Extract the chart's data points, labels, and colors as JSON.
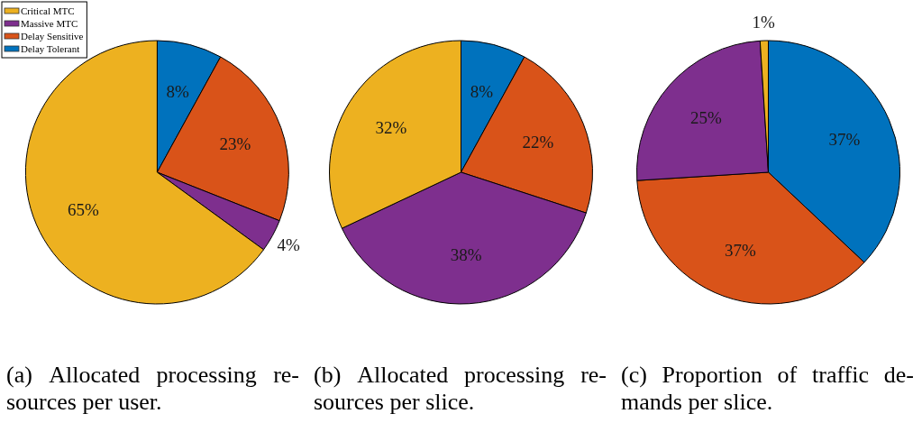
{
  "chart_data": [
    {
      "type": "pie",
      "title": "(a) Allocated processing re-\nsources per user.",
      "categories": [
        "Delay Tolerant",
        "Delay Sensitive",
        "Massive MTC",
        "Critical MTC"
      ],
      "values": [
        8,
        23,
        4,
        65
      ],
      "colors": [
        "#0072bd",
        "#d95319",
        "#7e2f8e",
        "#edb120"
      ],
      "value_labels": [
        "8%",
        "23%",
        "4%",
        "65%"
      ],
      "legend": "top left"
    },
    {
      "type": "pie",
      "title": "(b) Allocated processing re-\nsources per slice.",
      "categories": [
        null,
        null,
        null,
        null
      ],
      "values": [
        8,
        22,
        38,
        32
      ],
      "colors": [
        "#0072bd",
        "#d95319",
        "#7e2f8e",
        "#edb120"
      ],
      "value_labels": [
        "8%",
        "22%",
        "38%",
        "32%"
      ]
    },
    {
      "type": "pie",
      "title": "(c) Proportion of traffic de-\nmands per slice.",
      "categories": [
        null,
        null,
        null,
        null
      ],
      "values": [
        37,
        37,
        25,
        1
      ],
      "colors": [
        "#0072bd",
        "#d95319",
        "#7e2f8e",
        "#edb120"
      ],
      "value_labels": [
        "37%",
        "37%",
        "25%",
        "1%"
      ]
    }
  ]
}
